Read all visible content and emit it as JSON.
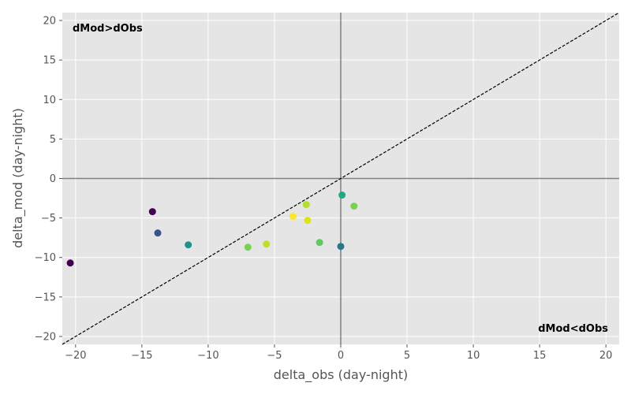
{
  "chart_data": {
    "type": "scatter",
    "title": "",
    "xlabel": "delta_obs (day-night)",
    "ylabel": "delta_mod (day-night)",
    "xlim": [
      -21,
      21
    ],
    "ylim": [
      -21,
      21
    ],
    "xticks": [
      -20,
      -15,
      -10,
      -5,
      0,
      5,
      10,
      15,
      20
    ],
    "yticks": [
      -20,
      -15,
      -10,
      -5,
      0,
      5,
      10,
      15,
      20
    ],
    "grid": true,
    "reference_lines": {
      "x": 0,
      "y": 0,
      "diagonal": "y = x"
    },
    "annotations": [
      {
        "text": "dMod>dObs",
        "location": "top-left"
      },
      {
        "text": "dMod<dObs",
        "location": "bottom-right"
      }
    ],
    "points": [
      {
        "x": -20.4,
        "y": -10.7,
        "color": "#440154"
      },
      {
        "x": -14.2,
        "y": -4.2,
        "color": "#440154"
      },
      {
        "x": -13.8,
        "y": -6.9,
        "color": "#3b528b"
      },
      {
        "x": -11.5,
        "y": -8.4,
        "color": "#21918c"
      },
      {
        "x": -7.0,
        "y": -8.7,
        "color": "#7ad151"
      },
      {
        "x": -5.6,
        "y": -8.3,
        "color": "#bddf26"
      },
      {
        "x": -3.6,
        "y": -4.8,
        "color": "#fde725"
      },
      {
        "x": -2.6,
        "y": -3.3,
        "color": "#b5de2b"
      },
      {
        "x": -2.5,
        "y": -5.3,
        "color": "#dde318"
      },
      {
        "x": -1.6,
        "y": -8.1,
        "color": "#5ec962"
      },
      {
        "x": 0.0,
        "y": -8.6,
        "color": "#2a788e"
      },
      {
        "x": 0.1,
        "y": -2.1,
        "color": "#22a884"
      },
      {
        "x": 1.0,
        "y": -3.5,
        "color": "#7ad151"
      }
    ]
  }
}
